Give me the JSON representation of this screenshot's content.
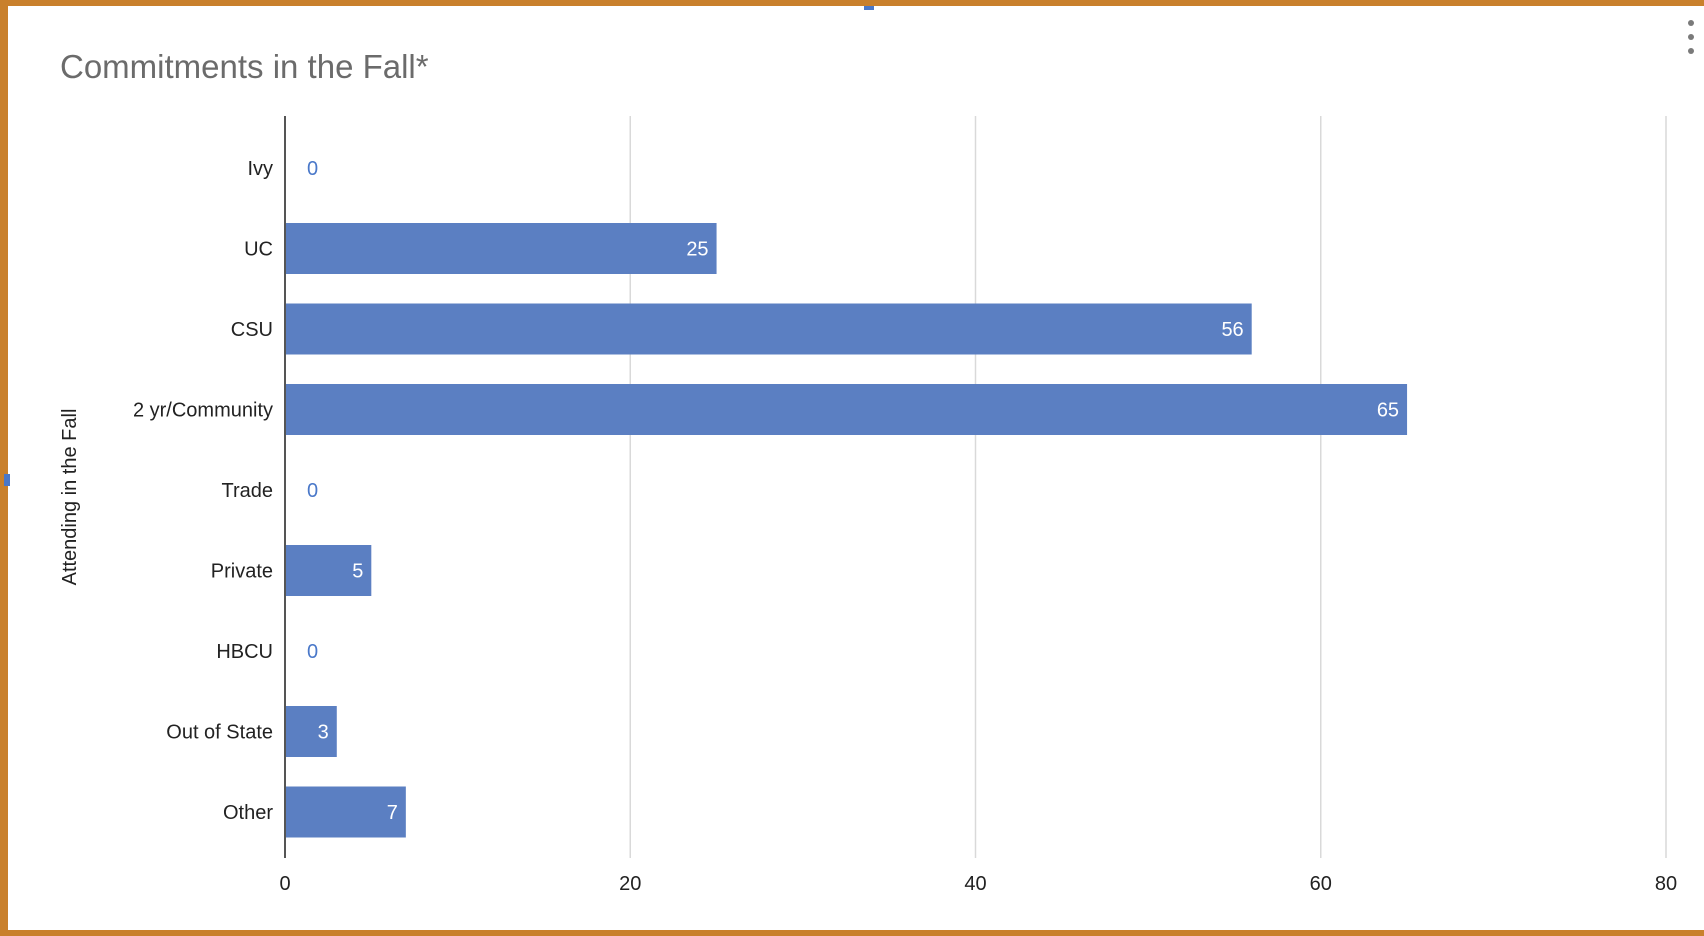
{
  "colors": {
    "frame": "#c9802c",
    "bar": "#5b7fc2",
    "grid": "#d9d9d9",
    "axis": "#555555",
    "title": "#6b6b6b",
    "label_outside": "#4a78c9"
  },
  "menu": {
    "icon": "more-vert-icon"
  },
  "chart_data": {
    "type": "bar",
    "orientation": "horizontal",
    "title": "Commitments in the Fall*",
    "xlabel": "",
    "ylabel": "Attending in the Fall",
    "categories": [
      "Ivy",
      "UC",
      "CSU",
      "2 yr/Community",
      "Trade",
      "Private",
      "HBCU",
      "Out of State",
      "Other"
    ],
    "values": [
      0,
      25,
      56,
      65,
      0,
      5,
      0,
      3,
      7
    ],
    "xlim": [
      0,
      80
    ],
    "xticks": [
      0,
      20,
      40,
      60,
      80
    ],
    "grid": true,
    "data_labels": true
  }
}
